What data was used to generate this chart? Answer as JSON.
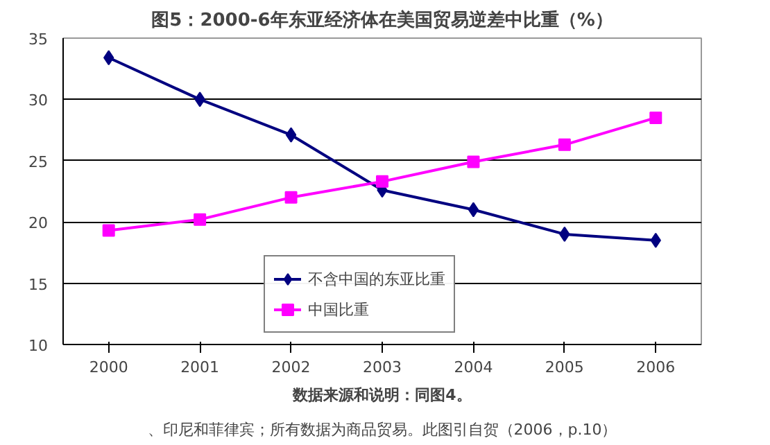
{
  "chart_data": {
    "type": "line",
    "title": "图5：2000-6年东亚经济体在美国贸易逆差中比重（%）",
    "categories": [
      "2000",
      "2001",
      "2002",
      "2003",
      "2004",
      "2005",
      "2006"
    ],
    "series": [
      {
        "name": "不含中国的东亚比重",
        "color": "#000080",
        "marker": "diamond",
        "values": [
          33.4,
          30.0,
          27.1,
          22.6,
          21.0,
          19.0,
          18.5
        ]
      },
      {
        "name": "中国比重",
        "color": "#ff00ff",
        "marker": "square",
        "values": [
          19.3,
          20.2,
          22.0,
          23.3,
          24.9,
          26.3,
          28.5
        ]
      }
    ],
    "ylim": [
      10,
      35
    ],
    "yticks": [
      10,
      15,
      20,
      25,
      30,
      35
    ],
    "grid": "y",
    "legend": "bottom",
    "annotations": [
      "数据来源和说明：同图4。",
      "、印尼和菲律宾；所有数据为商品贸易。此图引自贺（2006，p.10）"
    ]
  }
}
